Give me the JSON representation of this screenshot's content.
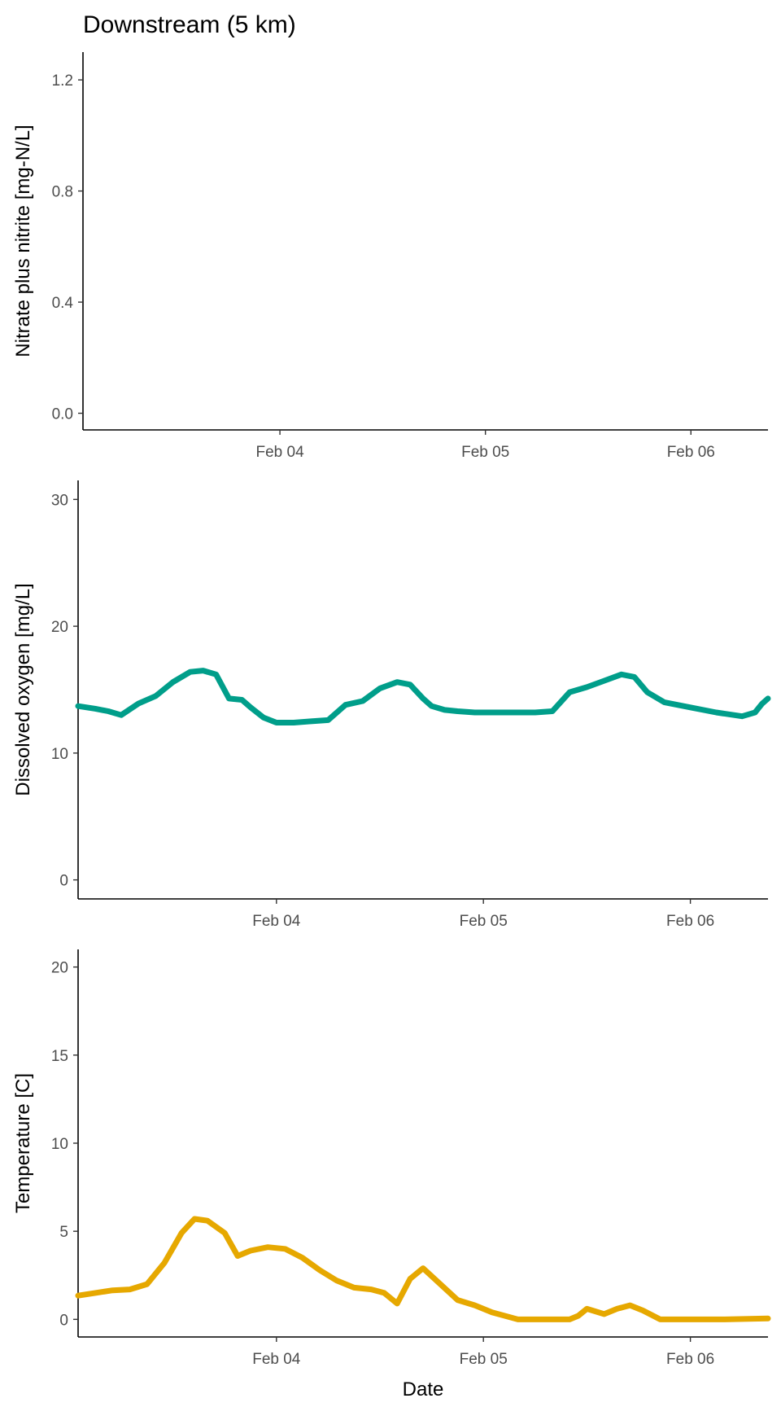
{
  "chart_data": [
    {
      "type": "line",
      "title": "Downstream (5 km)",
      "xlabel": "",
      "ylabel": "Nitrate plus nitrite [mg-N/L]",
      "xlim": [
        "2024-02-03T01:00",
        "2024-02-06T09:00"
      ],
      "ylim": [
        -0.06,
        1.3
      ],
      "xticks": [
        {
          "label": "Feb 04",
          "value": "2024-02-04T00:00"
        },
        {
          "label": "Feb 05",
          "value": "2024-02-05T00:00"
        },
        {
          "label": "Feb 06",
          "value": "2024-02-06T00:00"
        }
      ],
      "yticks": [
        {
          "label": "0.0",
          "value": 0
        },
        {
          "label": "0.4",
          "value": 0.4
        },
        {
          "label": "0.8",
          "value": 0.8
        },
        {
          "label": "1.2",
          "value": 1.2
        }
      ],
      "color": "#009E8A",
      "series": [
        {
          "x": [],
          "y": []
        }
      ]
    },
    {
      "type": "line",
      "title": "",
      "xlabel": "",
      "ylabel": "Dissolved oxygen [mg/L]",
      "xlim": [
        "2024-02-03T01:00",
        "2024-02-06T09:00"
      ],
      "ylim": [
        -1.5,
        31.5
      ],
      "xticks": [
        {
          "label": "Feb 04",
          "value": "2024-02-04T00:00"
        },
        {
          "label": "Feb 05",
          "value": "2024-02-05T00:00"
        },
        {
          "label": "Feb 06",
          "value": "2024-02-06T00:00"
        }
      ],
      "yticks": [
        {
          "label": "0",
          "value": 0
        },
        {
          "label": "10",
          "value": 10
        },
        {
          "label": "20",
          "value": 20
        },
        {
          "label": "30",
          "value": 30
        }
      ],
      "color": "#009E8A",
      "series": [
        {
          "x": [
            "2024-02-03T01:00",
            "2024-02-03T03:00",
            "2024-02-03T04:30",
            "2024-02-03T06:00",
            "2024-02-03T08:00",
            "2024-02-03T10:00",
            "2024-02-03T12:00",
            "2024-02-03T14:00",
            "2024-02-03T15:30",
            "2024-02-03T17:00",
            "2024-02-03T18:30",
            "2024-02-03T20:00",
            "2024-02-03T21:00",
            "2024-02-03T22:30",
            "2024-02-04T00:00",
            "2024-02-04T02:00",
            "2024-02-04T04:00",
            "2024-02-04T06:00",
            "2024-02-04T08:00",
            "2024-02-04T10:00",
            "2024-02-04T12:00",
            "2024-02-04T14:00",
            "2024-02-04T15:30",
            "2024-02-04T17:00",
            "2024-02-04T18:00",
            "2024-02-04T19:30",
            "2024-02-04T21:00",
            "2024-02-04T23:00",
            "2024-02-05T02:00",
            "2024-02-05T04:00",
            "2024-02-05T06:00",
            "2024-02-05T08:00",
            "2024-02-05T10:00",
            "2024-02-05T12:00",
            "2024-02-05T14:00",
            "2024-02-05T16:00",
            "2024-02-05T17:30",
            "2024-02-05T19:00",
            "2024-02-05T21:00",
            "2024-02-06T00:00",
            "2024-02-06T03:00",
            "2024-02-06T06:00",
            "2024-02-06T07:30",
            "2024-02-06T08:20",
            "2024-02-06T09:00"
          ],
          "y": [
            13.7,
            13.5,
            13.3,
            13.0,
            13.9,
            14.5,
            15.6,
            16.4,
            16.5,
            16.2,
            14.3,
            14.2,
            13.6,
            12.8,
            12.4,
            12.4,
            12.5,
            12.6,
            13.8,
            14.1,
            15.1,
            15.6,
            15.4,
            14.3,
            13.7,
            13.4,
            13.3,
            13.2,
            13.2,
            13.2,
            13.2,
            13.3,
            14.8,
            15.2,
            15.7,
            16.2,
            16.0,
            14.8,
            14.0,
            13.6,
            13.2,
            12.9,
            13.2,
            13.9,
            14.3
          ]
        }
      ]
    },
    {
      "type": "line",
      "title": "",
      "xlabel": "Date",
      "ylabel": "Temperature [C]",
      "xlim": [
        "2024-02-03T01:00",
        "2024-02-06T09:00"
      ],
      "ylim": [
        -1.0,
        21.0
      ],
      "xticks": [
        {
          "label": "Feb 04",
          "value": "2024-02-04T00:00"
        },
        {
          "label": "Feb 05",
          "value": "2024-02-05T00:00"
        },
        {
          "label": "Feb 06",
          "value": "2024-02-06T00:00"
        }
      ],
      "yticks": [
        {
          "label": "0",
          "value": 0
        },
        {
          "label": "5",
          "value": 5
        },
        {
          "label": "10",
          "value": 10
        },
        {
          "label": "15",
          "value": 15
        },
        {
          "label": "20",
          "value": 20
        }
      ],
      "color": "#E6A800",
      "series": [
        {
          "x": [
            "2024-02-03T01:00",
            "2024-02-03T03:00",
            "2024-02-03T05:00",
            "2024-02-03T07:00",
            "2024-02-03T09:00",
            "2024-02-03T11:00",
            "2024-02-03T13:00",
            "2024-02-03T14:30",
            "2024-02-03T16:00",
            "2024-02-03T18:00",
            "2024-02-03T19:30",
            "2024-02-03T21:00",
            "2024-02-03T23:00",
            "2024-02-04T01:00",
            "2024-02-04T03:00",
            "2024-02-04T05:00",
            "2024-02-04T07:00",
            "2024-02-04T09:00",
            "2024-02-04T11:00",
            "2024-02-04T12:30",
            "2024-02-04T14:00",
            "2024-02-04T15:30",
            "2024-02-04T17:00",
            "2024-02-04T19:00",
            "2024-02-04T21:00",
            "2024-02-04T23:00",
            "2024-02-05T01:00",
            "2024-02-05T04:00",
            "2024-02-05T08:00",
            "2024-02-05T10:00",
            "2024-02-05T11:00",
            "2024-02-05T12:00",
            "2024-02-05T14:00",
            "2024-02-05T15:30",
            "2024-02-05T17:00",
            "2024-02-05T18:30",
            "2024-02-05T20:30",
            "2024-02-06T00:00",
            "2024-02-06T04:00",
            "2024-02-06T09:00"
          ],
          "y": [
            1.35,
            1.5,
            1.65,
            1.7,
            2.0,
            3.2,
            4.9,
            5.7,
            5.6,
            4.9,
            3.6,
            3.9,
            4.1,
            4.0,
            3.5,
            2.8,
            2.2,
            1.8,
            1.7,
            1.5,
            0.9,
            2.3,
            2.9,
            2.0,
            1.1,
            0.8,
            0.4,
            0.0,
            0.0,
            0.0,
            0.2,
            0.6,
            0.3,
            0.6,
            0.8,
            0.5,
            0.0,
            0.0,
            0.0,
            0.05
          ]
        }
      ]
    }
  ]
}
